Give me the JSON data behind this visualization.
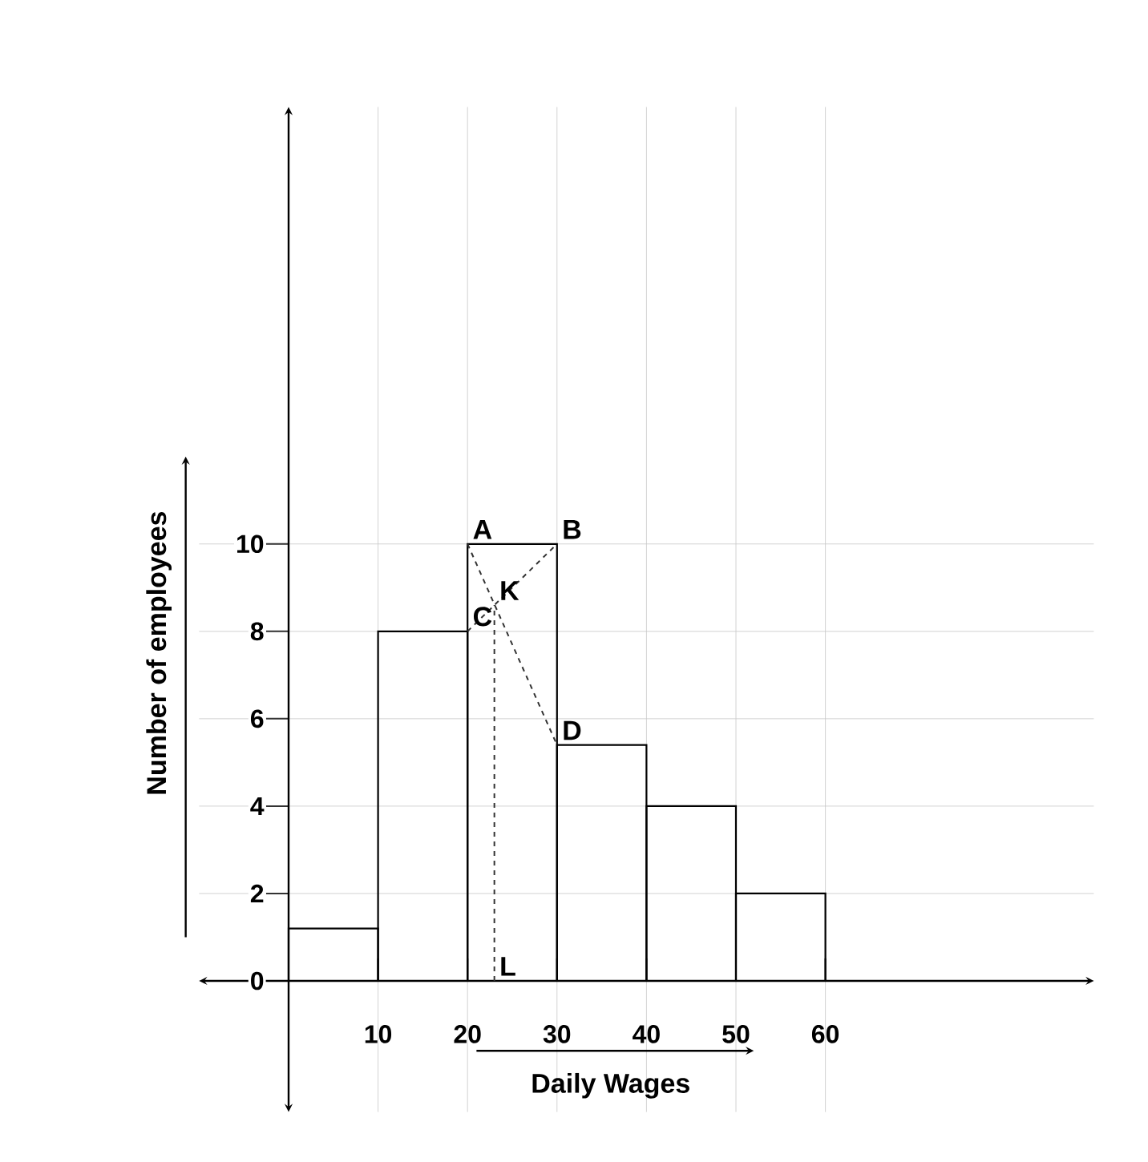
{
  "chart_data": {
    "type": "histogram",
    "xlabel": "Daily Wages",
    "ylabel": "Number of employees",
    "bins": [
      0,
      10,
      20,
      30,
      40,
      50,
      60
    ],
    "values": [
      1.2,
      8,
      10,
      5.4,
      4,
      2
    ],
    "color": "#000000",
    "series": [
      {
        "type": "line",
        "color": "#333333",
        "line_style": "dashed",
        "x": [
          20,
          30
        ],
        "values": [
          10,
          5.4
        ]
      },
      {
        "type": "line",
        "color": "#333333",
        "line_style": "dashed",
        "x": [
          20,
          30
        ],
        "values": [
          8,
          10
        ]
      },
      {
        "type": "line",
        "color": "#333333",
        "line_style": "dashed",
        "x": [
          23,
          23
        ],
        "values": [
          0,
          8.6
        ]
      }
    ],
    "xlim": [
      -10,
      90
    ],
    "ylim": [
      -3,
      20
    ],
    "xticks": [
      10,
      20,
      30,
      40,
      50,
      60
    ],
    "yticks": [
      0,
      2,
      4,
      6,
      8,
      10
    ],
    "grid": true,
    "annotations": [
      {
        "text": "A",
        "x": 20,
        "y": 10
      },
      {
        "text": "B",
        "x": 30,
        "y": 10
      },
      {
        "text": "C",
        "x": 20,
        "y": 8
      },
      {
        "text": "D",
        "x": 30,
        "y": 5.4
      },
      {
        "text": "K",
        "x": 23,
        "y": 8.6
      },
      {
        "text": "L",
        "x": 23,
        "y": 0
      }
    ]
  }
}
